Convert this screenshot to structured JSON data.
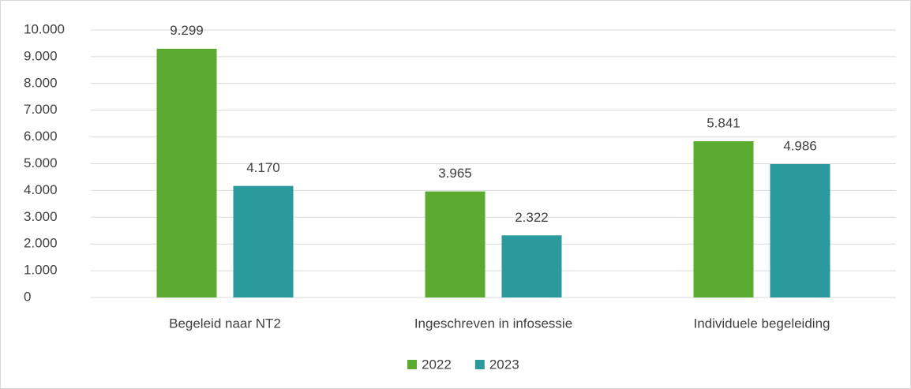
{
  "chart_data": {
    "type": "bar",
    "categories": [
      "Begeleid naar NT2",
      "Ingeschreven in infosessie",
      "Individuele begeleiding"
    ],
    "series": [
      {
        "name": "2022",
        "color": "#5bab31",
        "values": [
          9299,
          3965,
          5841
        ],
        "value_labels": [
          "9.299",
          "3.965",
          "5.841"
        ]
      },
      {
        "name": "2023",
        "color": "#2b9a9d",
        "values": [
          4170,
          2322,
          4986
        ],
        "value_labels": [
          "4.170",
          "2.322",
          "4.986"
        ]
      }
    ],
    "ylim": [
      0,
      10000
    ],
    "yticks": [
      0,
      {
        "value": 1000,
        "label": "1.000"
      },
      {
        "value": 2000,
        "label": "2.000"
      },
      {
        "value": 3000,
        "label": "3.000"
      },
      {
        "value": 4000,
        "label": "4.000"
      },
      {
        "value": 5000,
        "label": "5.000"
      },
      {
        "value": 6000,
        "label": "6.000"
      },
      {
        "value": 7000,
        "label": "7.000"
      },
      {
        "value": 8000,
        "label": "8.000"
      },
      {
        "value": 9000,
        "label": "9.000"
      },
      {
        "value": 10000,
        "label": "10.000"
      }
    ],
    "grid": true,
    "legend": "bottom"
  }
}
